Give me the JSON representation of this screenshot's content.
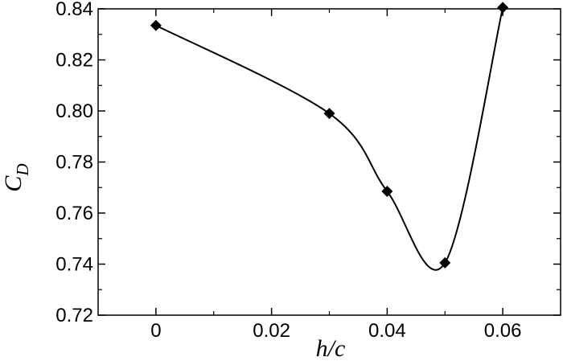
{
  "chart_data": {
    "type": "line",
    "title": "",
    "xlabel": "h/c",
    "ylabel": "C_D",
    "ylabel_main": "C",
    "ylabel_sub": "D",
    "xlim": [
      -0.01,
      0.07
    ],
    "ylim": [
      0.72,
      0.84
    ],
    "xticks": [
      0,
      0.02,
      0.04,
      0.06
    ],
    "xtick_labels": [
      "0",
      "0.02",
      "0.04",
      "0.06"
    ],
    "yticks": [
      0.72,
      0.74,
      0.76,
      0.78,
      0.8,
      0.82,
      0.84
    ],
    "ytick_labels": [
      "0.72",
      "0.74",
      "0.76",
      "0.78",
      "0.80",
      "0.82",
      "0.84"
    ],
    "grid": false,
    "legend": "none",
    "marker": "diamond",
    "line_color": "#000000",
    "series": [
      {
        "x": [
          0,
          0.03,
          0.04,
          0.05,
          0.06
        ],
        "y": [
          0.8335,
          0.799,
          0.7685,
          0.7405,
          0.8405
        ]
      }
    ]
  }
}
